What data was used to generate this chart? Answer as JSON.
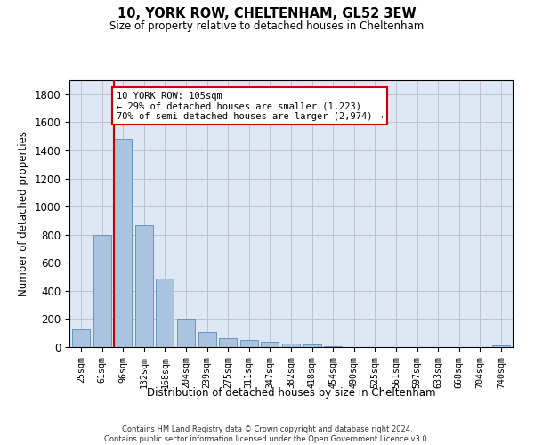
{
  "title": "10, YORK ROW, CHELTENHAM, GL52 3EW",
  "subtitle": "Size of property relative to detached houses in Cheltenham",
  "xlabel": "Distribution of detached houses by size in Cheltenham",
  "ylabel": "Number of detached properties",
  "categories": [
    "25sqm",
    "61sqm",
    "96sqm",
    "132sqm",
    "168sqm",
    "204sqm",
    "239sqm",
    "275sqm",
    "311sqm",
    "347sqm",
    "382sqm",
    "418sqm",
    "454sqm",
    "490sqm",
    "525sqm",
    "561sqm",
    "597sqm",
    "633sqm",
    "668sqm",
    "704sqm",
    "740sqm"
  ],
  "values": [
    125,
    800,
    1480,
    870,
    485,
    205,
    105,
    65,
    50,
    35,
    25,
    18,
    8,
    2,
    2,
    2,
    2,
    2,
    2,
    2,
    15
  ],
  "bar_color": "#aac4e0",
  "bar_edge_color": "#5a8ab8",
  "vline_color": "#cc0000",
  "vline_bin": 2,
  "annotation_text": "10 YORK ROW: 105sqm\n← 29% of detached houses are smaller (1,223)\n70% of semi-detached houses are larger (2,974) →",
  "annotation_box_color": "#ffffff",
  "annotation_box_edge": "#cc0000",
  "ylim": [
    0,
    1900
  ],
  "yticks": [
    0,
    200,
    400,
    600,
    800,
    1000,
    1200,
    1400,
    1600,
    1800
  ],
  "ax_facecolor": "#dde8f4",
  "background_color": "#ffffff",
  "grid_color": "#bbbbcc",
  "footer_line1": "Contains HM Land Registry data © Crown copyright and database right 2024.",
  "footer_line2": "Contains public sector information licensed under the Open Government Licence v3.0."
}
